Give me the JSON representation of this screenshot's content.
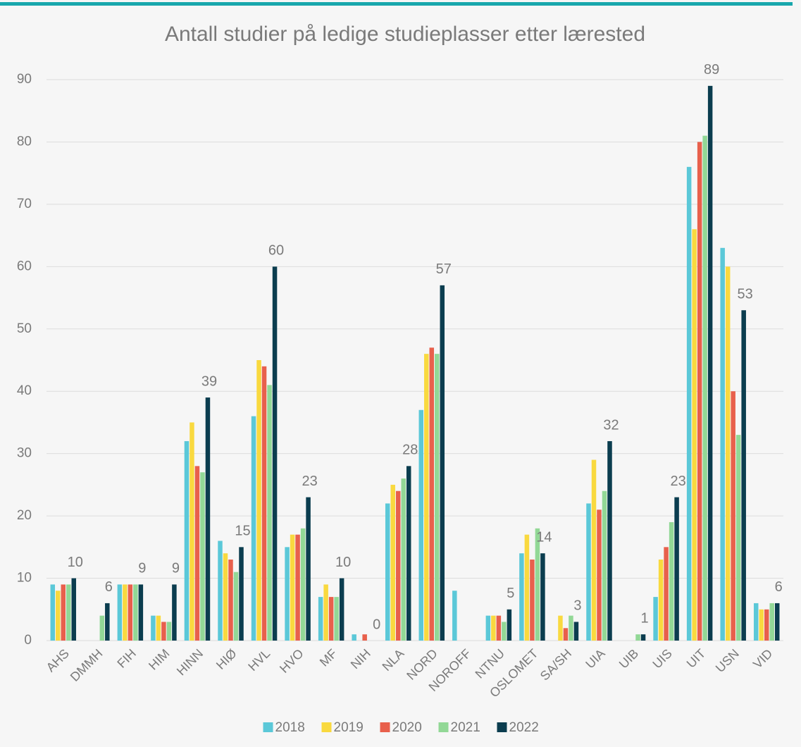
{
  "chart_data": {
    "type": "bar",
    "title": "Antall studier på ledige studieplasser etter lærested",
    "categories": [
      "AHS",
      "DMMH",
      "FIH",
      "HIM",
      "HINN",
      "HIØ",
      "HVL",
      "HVO",
      "MF",
      "NIH",
      "NLA",
      "NORD",
      "NOROFF",
      "NTNU",
      "OSLOMET",
      "SA/SH",
      "UIA",
      "UIB",
      "UIS",
      "UIT",
      "USN",
      "VID"
    ],
    "series": [
      {
        "name": "2018",
        "color": "#5bc8d8",
        "values": [
          9,
          null,
          9,
          4,
          32,
          16,
          36,
          15,
          7,
          1,
          22,
          37,
          8,
          4,
          14,
          null,
          22,
          null,
          7,
          76,
          63,
          6
        ]
      },
      {
        "name": "2019",
        "color": "#f9d93f",
        "values": [
          8,
          null,
          9,
          4,
          35,
          14,
          45,
          17,
          9,
          null,
          25,
          46,
          null,
          4,
          17,
          4,
          29,
          null,
          13,
          66,
          60,
          5
        ]
      },
      {
        "name": "2020",
        "color": "#e8604c",
        "values": [
          9,
          null,
          9,
          3,
          28,
          13,
          44,
          17,
          7,
          1,
          24,
          47,
          null,
          4,
          13,
          2,
          21,
          null,
          15,
          80,
          40,
          5
        ]
      },
      {
        "name": "2021",
        "color": "#92d896",
        "values": [
          9,
          4,
          9,
          3,
          27,
          11,
          41,
          18,
          7,
          null,
          26,
          46,
          null,
          3,
          18,
          4,
          24,
          1,
          19,
          81,
          33,
          6
        ]
      },
      {
        "name": "2022",
        "color": "#0b3d4f",
        "values": [
          10,
          6,
          9,
          9,
          39,
          15,
          60,
          23,
          10,
          0,
          28,
          57,
          null,
          5,
          14,
          3,
          32,
          1,
          23,
          89,
          53,
          6
        ]
      }
    ],
    "label_series": 4,
    "ylim": [
      0,
      90
    ],
    "yticks": [
      0,
      10,
      20,
      30,
      40,
      50,
      60,
      70,
      80,
      90
    ],
    "grid": true,
    "legend": "bottom"
  }
}
